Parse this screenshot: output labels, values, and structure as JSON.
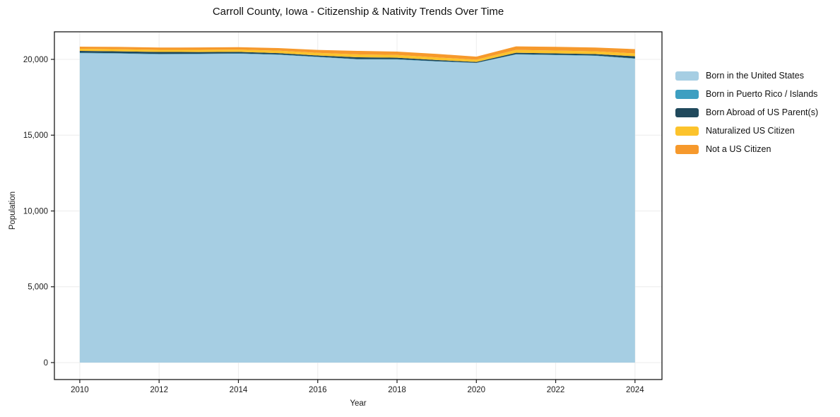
{
  "chart_data": {
    "type": "area",
    "stacked": true,
    "title": "Carroll County, Iowa - Citizenship & Nativity Trends Over Time",
    "xlabel": "Year",
    "ylabel": "Population",
    "x": [
      2010,
      2011,
      2012,
      2013,
      2014,
      2015,
      2016,
      2017,
      2018,
      2019,
      2020,
      2021,
      2022,
      2023,
      2024
    ],
    "xticks": [
      2010,
      2012,
      2014,
      2016,
      2018,
      2020,
      2022,
      2024
    ],
    "yticks": [
      0,
      5000,
      10000,
      15000,
      20000
    ],
    "xlim": [
      2009.36,
      2024.68
    ],
    "ylim": [
      -1119,
      21818
    ],
    "grid": true,
    "legend_position": "right of plot, top aligned",
    "series": [
      {
        "name": "Born in the United States",
        "color": "#a6cee3",
        "values": [
          20410,
          20380,
          20330,
          20350,
          20370,
          20300,
          20150,
          20000,
          19990,
          19860,
          19760,
          20320,
          20280,
          20230,
          20040
        ]
      },
      {
        "name": "Born in Puerto Rico / Islands",
        "color": "#3d9fc1",
        "values": [
          30,
          30,
          30,
          25,
          25,
          25,
          25,
          20,
          20,
          20,
          15,
          25,
          25,
          25,
          25
        ]
      },
      {
        "name": "Born Abroad of US Parent(s)",
        "color": "#20495c",
        "values": [
          120,
          120,
          130,
          110,
          100,
          90,
          80,
          120,
          100,
          80,
          55,
          90,
          90,
          95,
          140
        ]
      },
      {
        "name": "Naturalized US Citizen",
        "color": "#fcc32c",
        "values": [
          140,
          140,
          140,
          145,
          150,
          160,
          175,
          190,
          180,
          170,
          150,
          190,
          185,
          180,
          190
        ]
      },
      {
        "name": "Not a US Citizen",
        "color": "#f6992c",
        "values": [
          140,
          150,
          150,
          155,
          160,
          170,
          195,
          230,
          220,
          230,
          200,
          230,
          250,
          250,
          280
        ]
      }
    ],
    "colors": {
      "grid": "#ececec",
      "spine": "#1a1a1a",
      "tick_text": "#1a1a1a",
      "background": "#ffffff"
    }
  }
}
